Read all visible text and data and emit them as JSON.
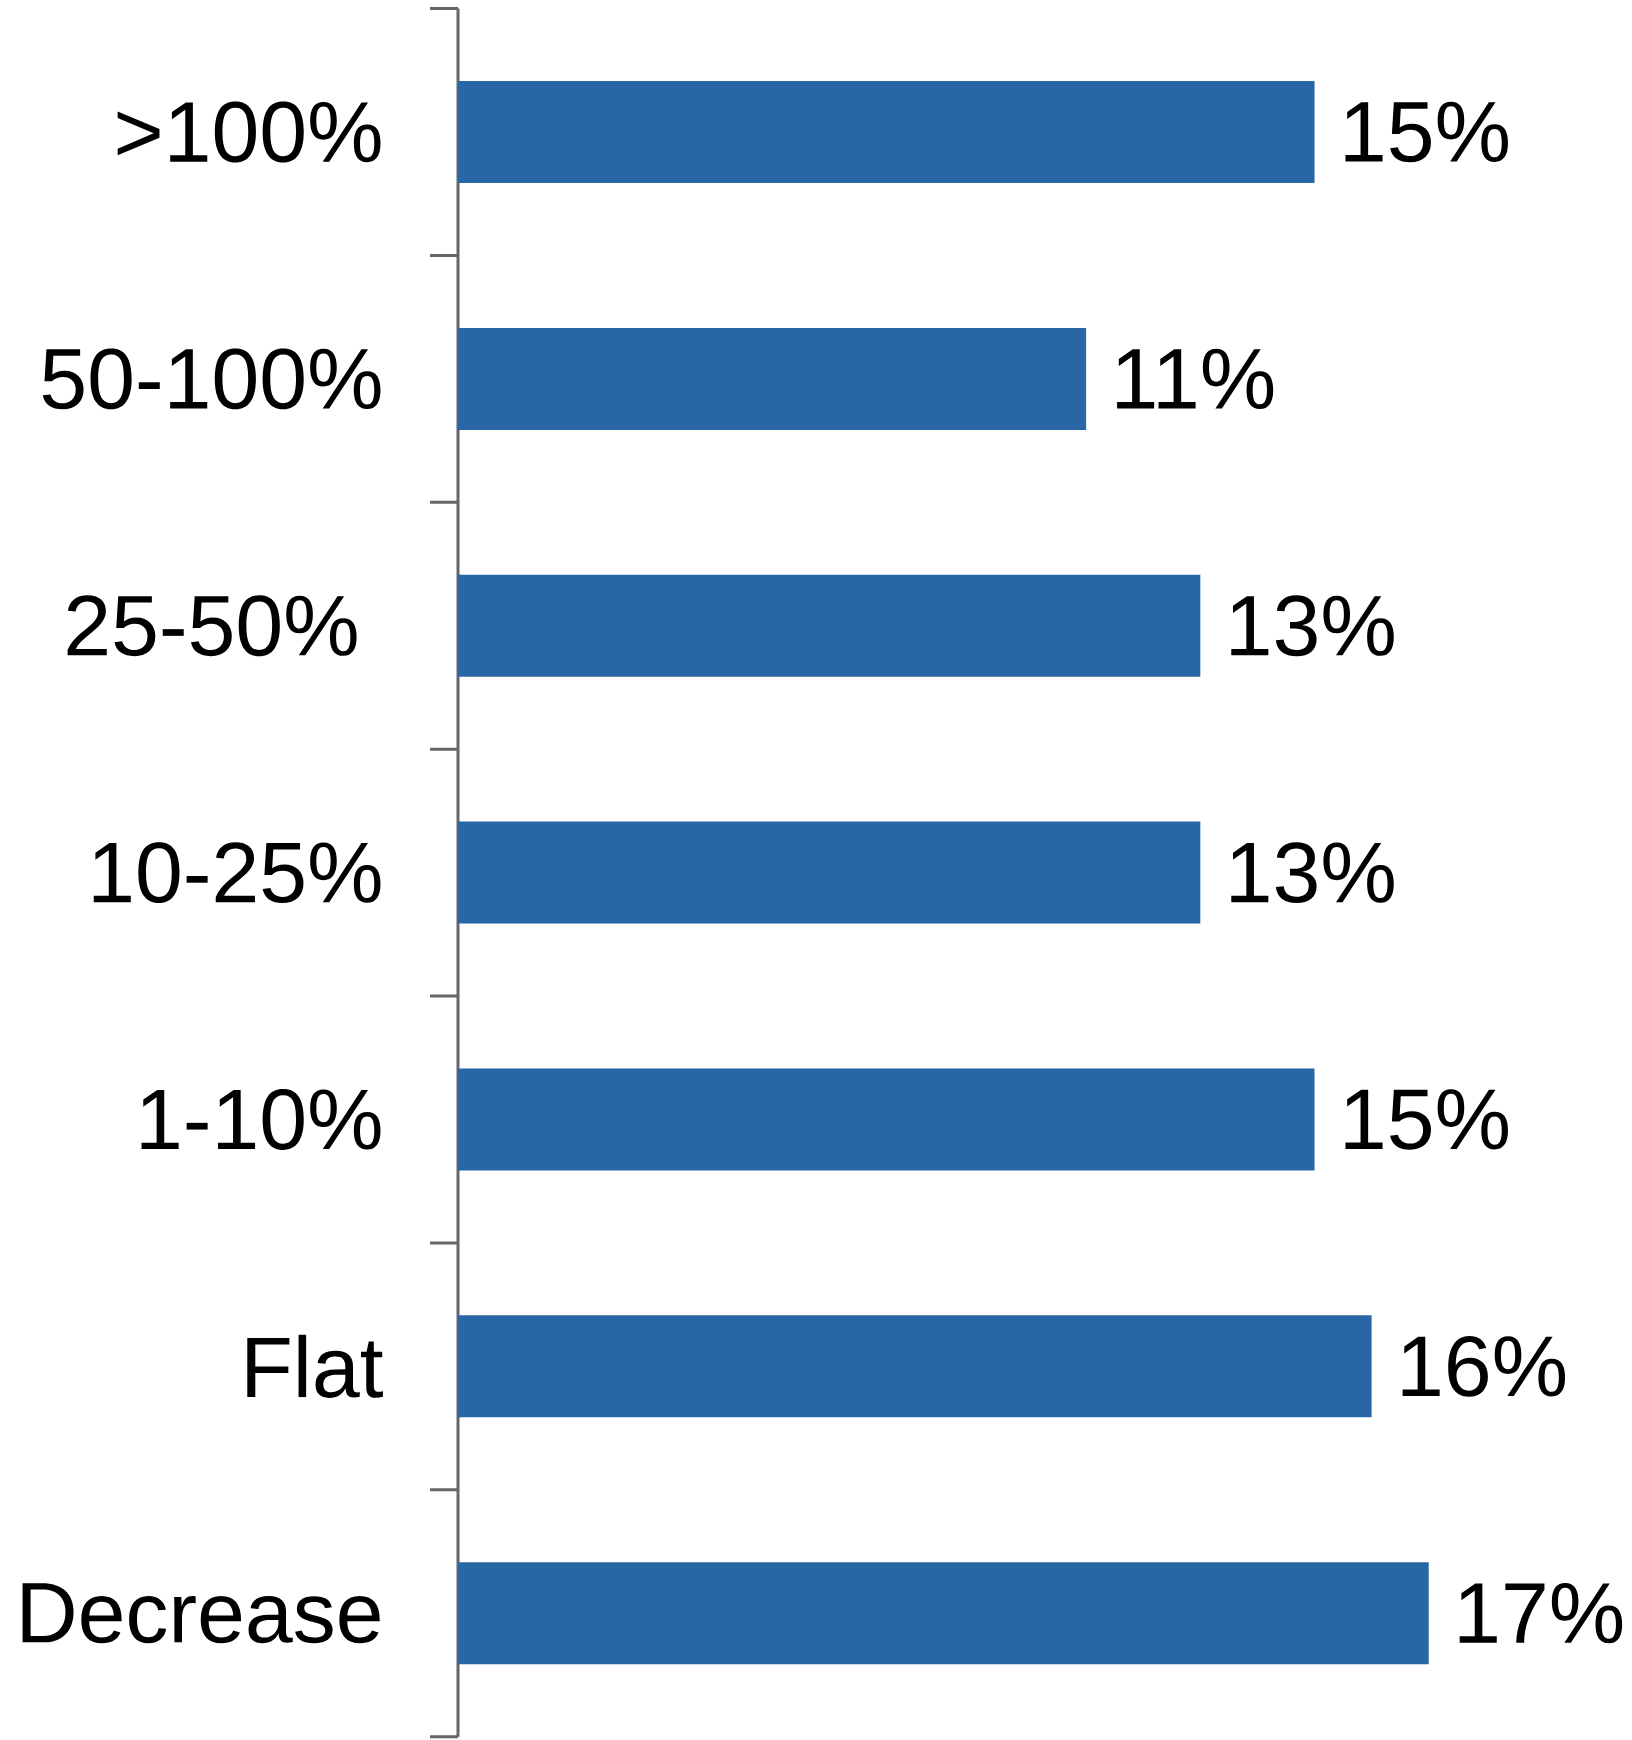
{
  "chart_data": {
    "type": "bar",
    "orientation": "horizontal",
    "categories": [
      ">100%",
      "50-100%",
      "25-50% ",
      "10-25%",
      "1-10%",
      "Flat",
      "Decrease"
    ],
    "values": [
      15,
      11,
      13,
      13,
      15,
      16,
      17
    ],
    "value_labels": [
      "15%",
      "11%",
      "13%",
      "13%",
      "15%",
      "16%",
      "17%"
    ],
    "color": "#2966a5",
    "tick_labels": "y"
  }
}
